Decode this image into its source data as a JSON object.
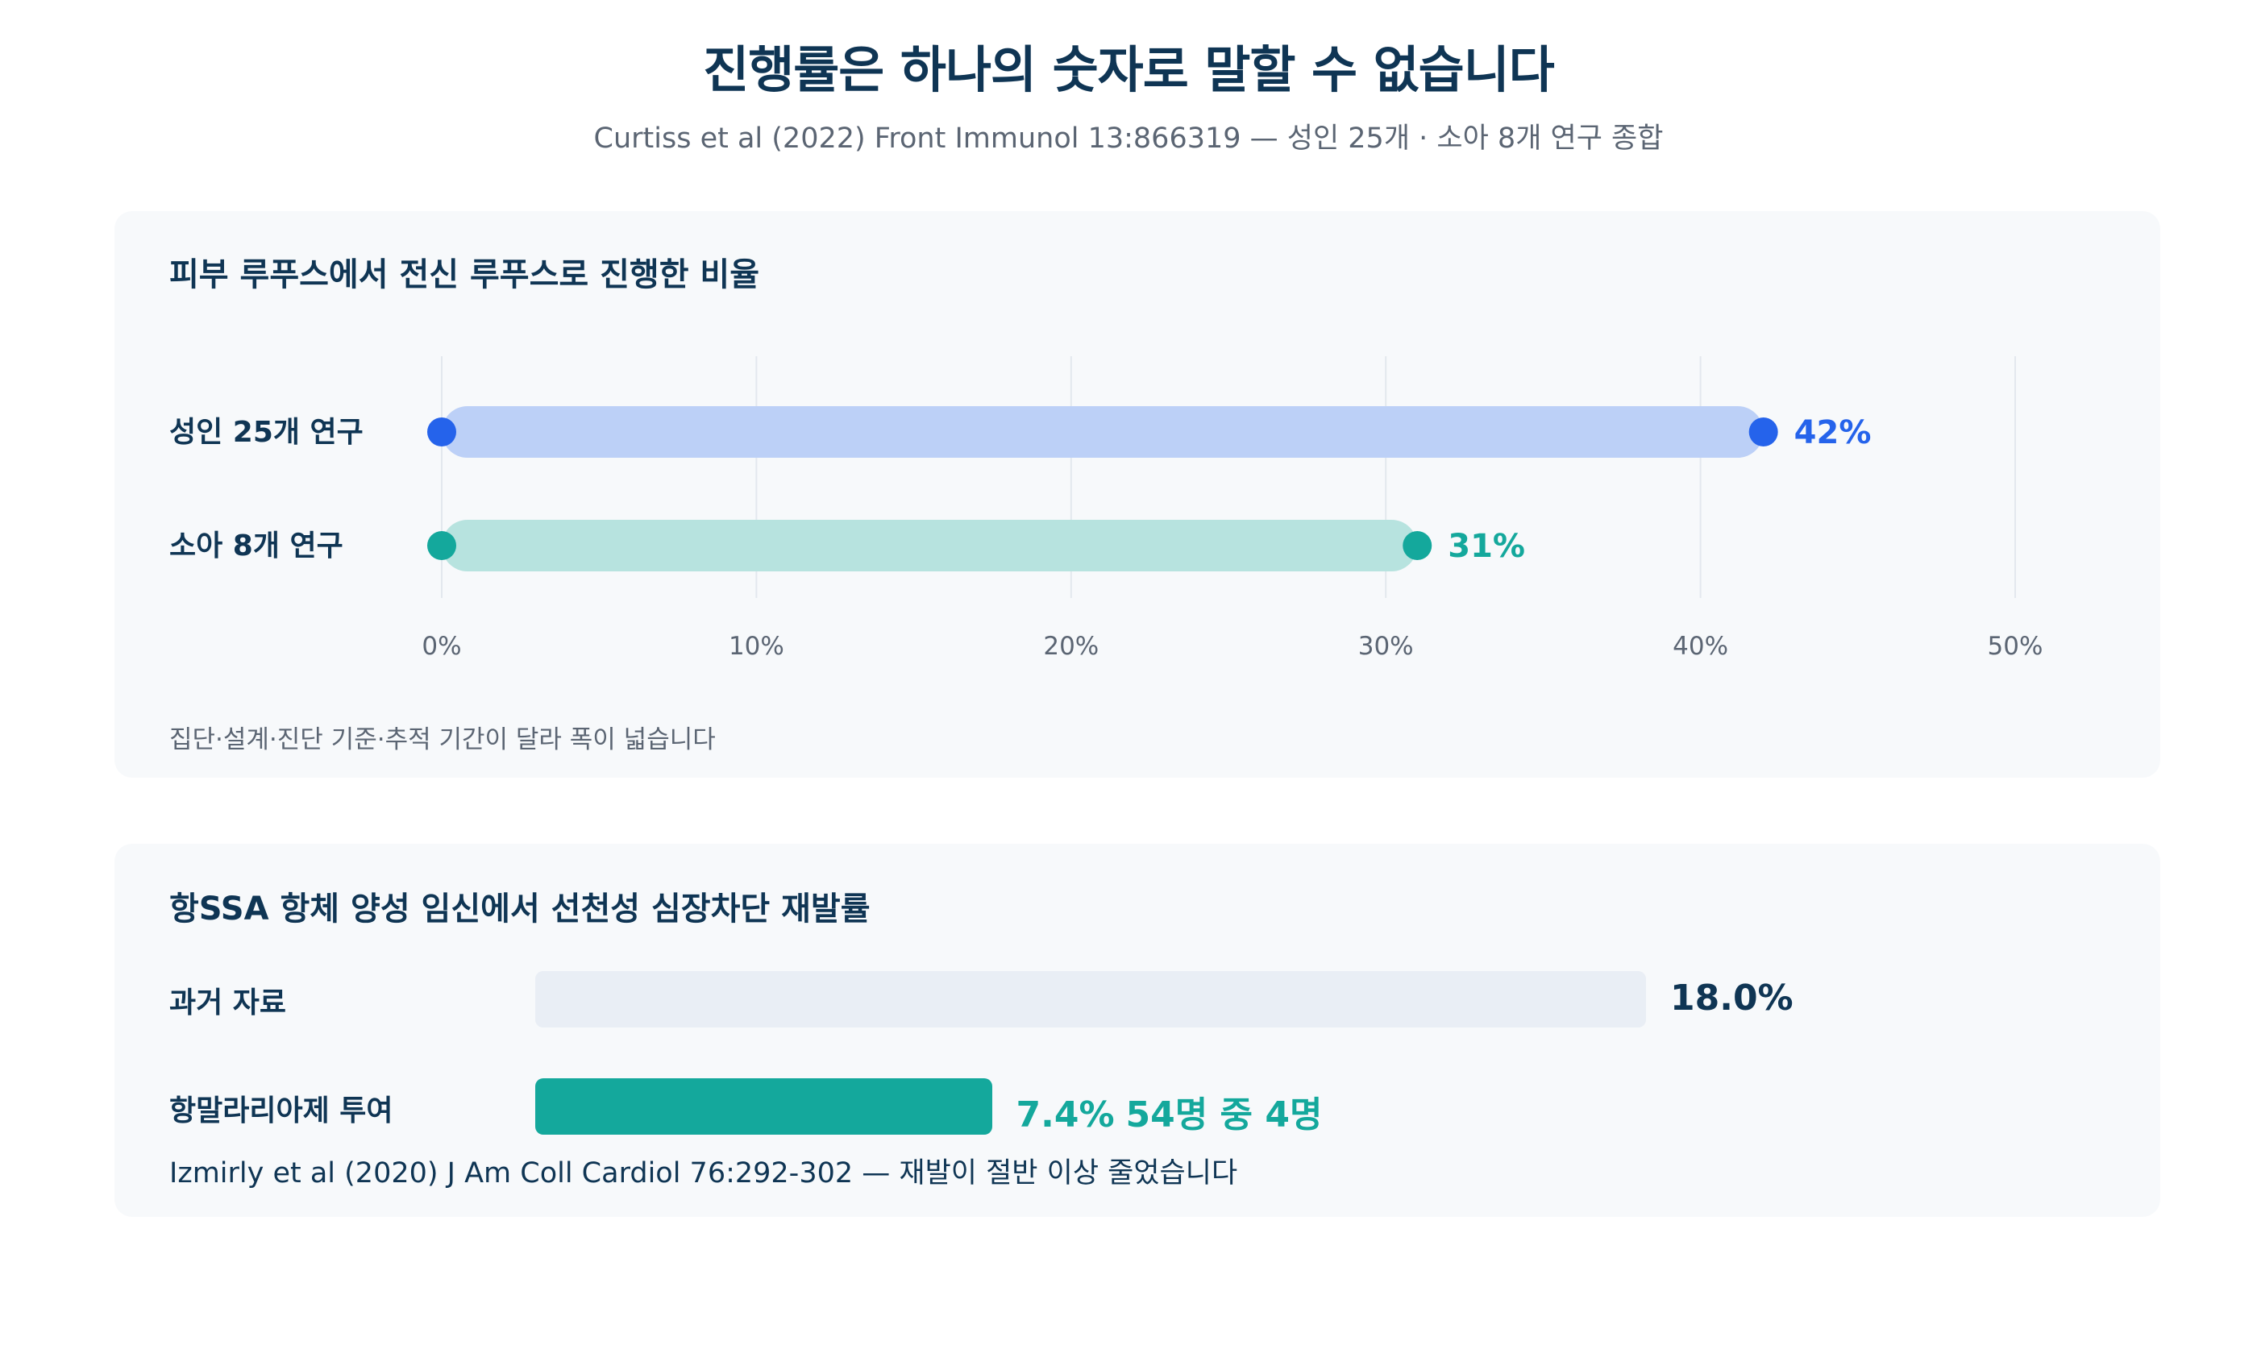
{
  "header": {
    "title": "진행률은 하나의 숫자로 말할 수 없습니다",
    "subtitle": "Curtiss et al (2022) Front Immunol 13:866319 — 성인 25개 · 소아 8개 연구 종합"
  },
  "chart_data": [
    {
      "type": "bar",
      "title": "피부 루푸스에서 전신 루푸스로 진행한 비율",
      "categories": [
        "성인 25개 연구",
        "소아 8개 연구"
      ],
      "values": [
        42,
        31
      ],
      "value_labels": [
        "42%",
        "31%"
      ],
      "xlim": [
        0,
        50
      ],
      "x_ticks": [
        "0%",
        "10%",
        "20%",
        "30%",
        "40%",
        "50%"
      ],
      "grid": true,
      "colors": [
        "#2563eb",
        "#14a89c"
      ],
      "note": "집단·설계·진단 기준·추적 기간이 달라 폭이 넓습니다"
    },
    {
      "type": "bar",
      "title": "항SSA 항체 양성 임신에서 선천성 심장차단 재발률",
      "categories": [
        "과거 자료",
        "항말라리아제 투여"
      ],
      "values": [
        18.0,
        7.4
      ],
      "value_labels": [
        "18.0%",
        "7.4%"
      ],
      "value_details": [
        "",
        "54명 중 4명"
      ],
      "xlim": [
        0,
        18.0
      ],
      "colors": [
        "#e9eef5",
        "#14a89c"
      ],
      "value_colors": [
        "#0f3554",
        "#14a89c"
      ],
      "source": "Izmirly et al (2020) J Am Coll Cardiol 76:292-302 — 재발이 절반 이상 줄었습니다"
    }
  ]
}
